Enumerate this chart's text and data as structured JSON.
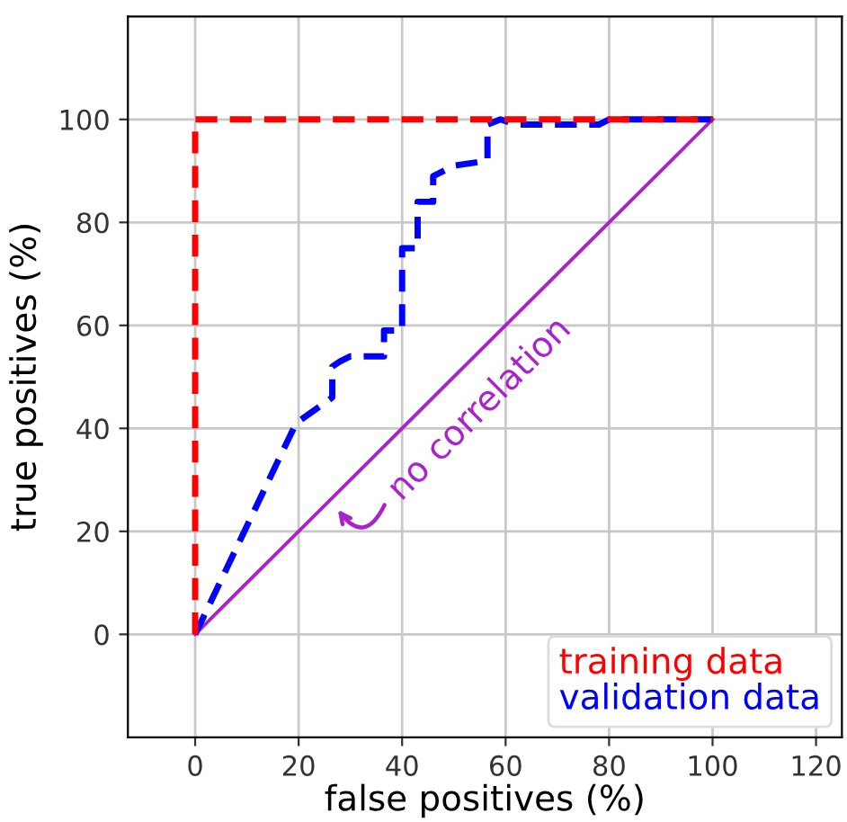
{
  "chart_data": {
    "type": "line",
    "xlabel": "false positives (%)",
    "ylabel": "true positives (%)",
    "xlim": [
      -13,
      125
    ],
    "ylim": [
      -20,
      120
    ],
    "xticks": [
      0,
      20,
      40,
      60,
      80,
      100,
      120
    ],
    "yticks": [
      0,
      20,
      40,
      60,
      80,
      100
    ],
    "grid": true,
    "legend": "bottom right",
    "line_style": "dashed",
    "series": [
      {
        "name": "training data",
        "color": "#ff0000",
        "x": [
          0,
          0,
          100
        ],
        "values": [
          0,
          100,
          100
        ]
      },
      {
        "name": "validation data",
        "color": "#0000ff",
        "x": [
          0,
          19.5,
          26.5,
          26.5,
          28,
          30,
          36.5,
          36.5,
          40,
          40,
          43,
          43,
          46,
          46,
          50,
          56.5,
          56.5,
          59,
          62,
          78,
          80,
          100
        ],
        "values": [
          0,
          41,
          46,
          52,
          53,
          54,
          54,
          59,
          59,
          75,
          75,
          84,
          84,
          89,
          91,
          92,
          99,
          100,
          99,
          99,
          100,
          100
        ]
      },
      {
        "color": "#aa22cc",
        "line_style": "solid",
        "x": [
          0,
          100
        ],
        "values": [
          0,
          100
        ]
      }
    ],
    "annotations": [
      {
        "text": "no correlation",
        "x": 27,
        "y": 25
      }
    ]
  }
}
